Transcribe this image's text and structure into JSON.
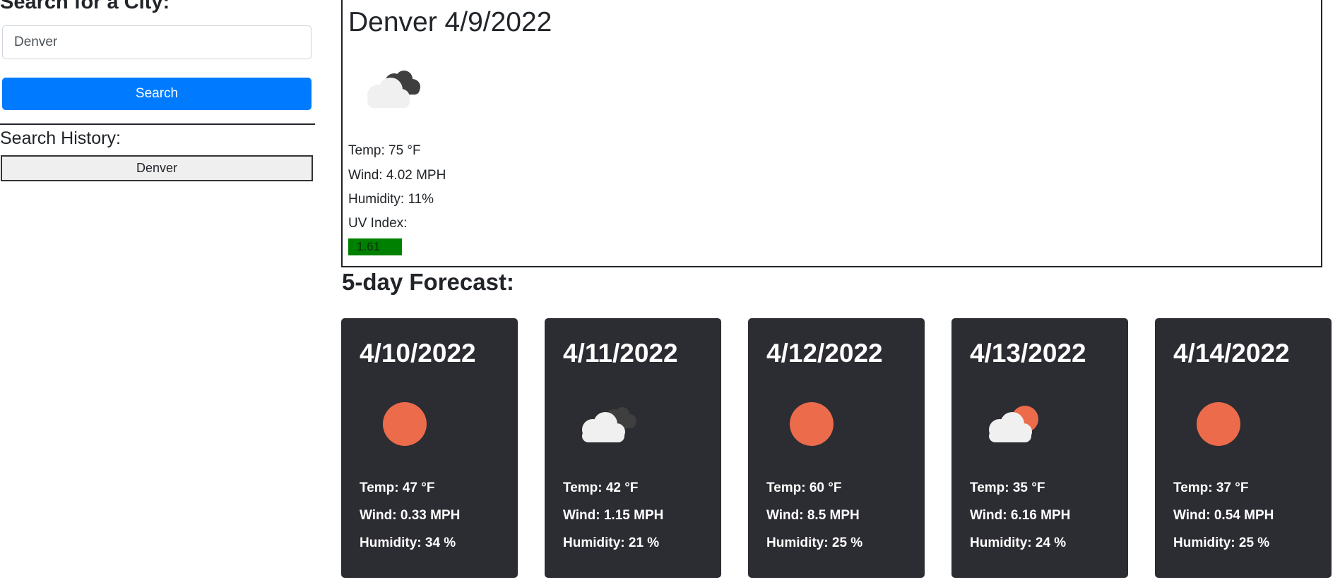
{
  "search": {
    "heading": "Search for a City:",
    "input_value": "Denver",
    "button_label": "Search"
  },
  "history": {
    "heading": "Search History:",
    "items": [
      "Denver"
    ]
  },
  "current": {
    "title": "Denver 4/9/2022",
    "icon": "cloudy-icon",
    "temp": "Temp: 75 °F",
    "wind": "Wind: 4.02 MPH",
    "humidity": "Humidity: 11%",
    "uv_label": "UV Index:",
    "uv_value": "1.61",
    "uv_color": "#008000"
  },
  "forecast": {
    "heading": "5-day Forecast:",
    "days": [
      {
        "date": "4/10/2022",
        "icon": "sun-icon",
        "temp": "Temp: 47 °F",
        "wind": "Wind: 0.33 MPH",
        "humidity": "Humidity: 34 %"
      },
      {
        "date": "4/11/2022",
        "icon": "cloudy-icon",
        "temp": "Temp: 42 °F",
        "wind": "Wind: 1.15 MPH",
        "humidity": "Humidity: 21 %"
      },
      {
        "date": "4/12/2022",
        "icon": "sun-icon",
        "temp": "Temp: 60 °F",
        "wind": "Wind: 8.5 MPH",
        "humidity": "Humidity: 25 %"
      },
      {
        "date": "4/13/2022",
        "icon": "partly-cloudy-icon",
        "temp": "Temp: 35 °F",
        "wind": "Wind: 6.16 MPH",
        "humidity": "Humidity: 24 %"
      },
      {
        "date": "4/14/2022",
        "icon": "sun-icon",
        "temp": "Temp: 37 °F",
        "wind": "Wind: 0.54 MPH",
        "humidity": "Humidity: 25 %"
      }
    ]
  },
  "colors": {
    "primary": "#007bff",
    "card_bg": "#2c2c33",
    "sun": "#ec6b4a"
  }
}
